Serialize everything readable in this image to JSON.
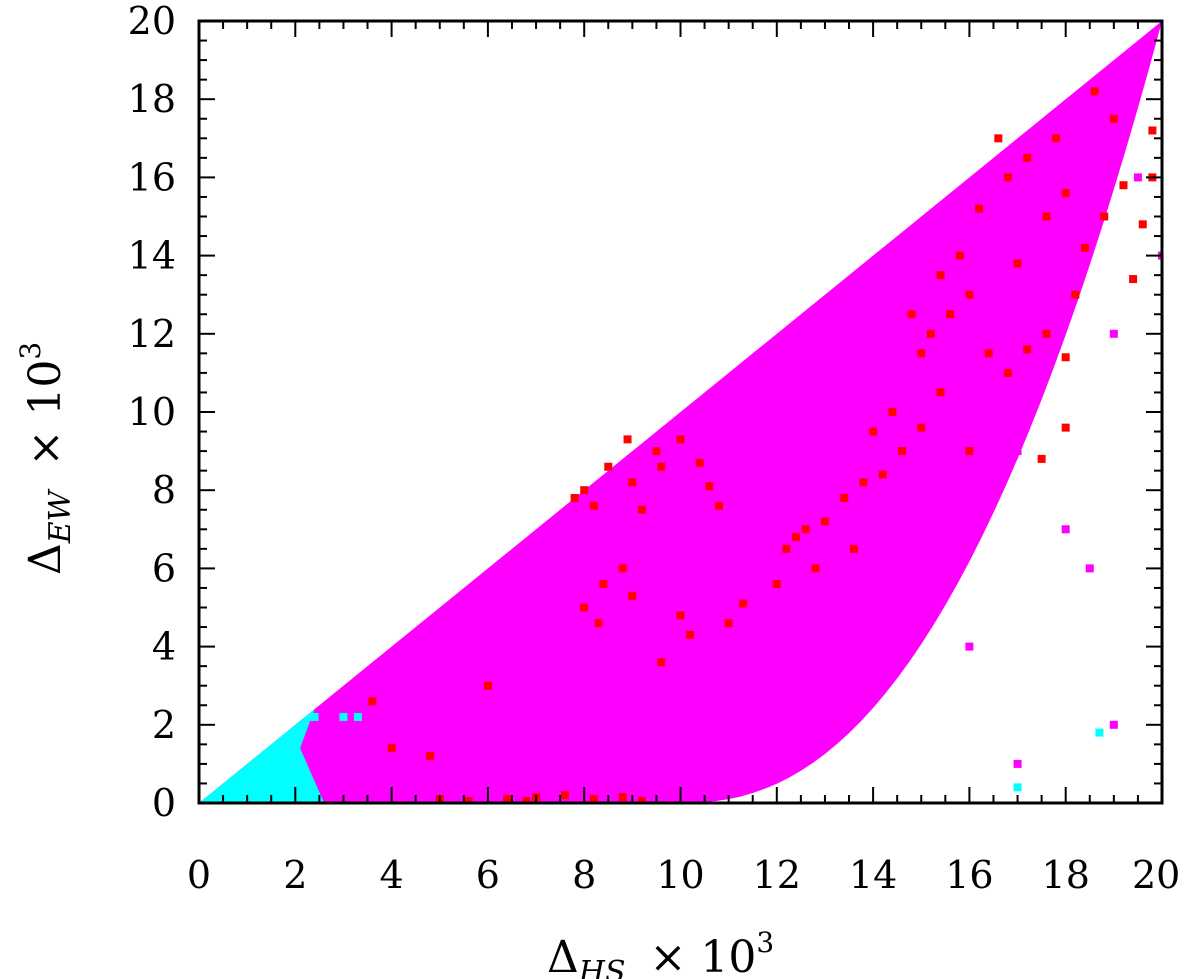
{
  "chart_data": {
    "type": "scatter",
    "title": "",
    "xlabel": {
      "symbol": "Δ",
      "subscript": "HS",
      "suffix": "× 10",
      "exponent": "3"
    },
    "ylabel": {
      "symbol": "Δ",
      "subscript": "EW",
      "suffix": "× 10",
      "exponent": "3"
    },
    "xlim": [
      0,
      20
    ],
    "ylim": [
      0,
      20
    ],
    "xticks": [
      "0",
      "2",
      "4",
      "6",
      "8",
      "10",
      "12",
      "14",
      "16",
      "18",
      "20"
    ],
    "yticks": [
      "0",
      "2",
      "4",
      "6",
      "8",
      "10",
      "12",
      "14",
      "16",
      "18",
      "20"
    ],
    "grid": false,
    "legend": "none",
    "series": [
      {
        "color": "#ff00ff",
        "region": "dense fill of the wedge 0 ≤ y ≤ x, lower boundary ≈ 20·((x−10)/10)^2.3 for x ≥ 10",
        "points": [
          [
            3,
            1
          ],
          [
            5,
            2
          ],
          [
            6,
            3
          ],
          [
            8,
            4
          ],
          [
            10,
            5
          ],
          [
            12,
            3
          ],
          [
            14,
            5
          ],
          [
            15,
            8
          ],
          [
            17,
            9
          ],
          [
            18,
            7
          ],
          [
            19,
            12
          ],
          [
            19.5,
            16
          ],
          [
            16,
            4
          ],
          [
            13,
            2
          ],
          [
            17,
            1
          ],
          [
            19,
            2
          ],
          [
            18.5,
            6
          ],
          [
            20,
            14
          ]
        ]
      },
      {
        "color": "#ff0000",
        "points": [
          [
            8,
            8
          ],
          [
            8.5,
            8.6
          ],
          [
            9,
            8.2
          ],
          [
            9.5,
            9
          ],
          [
            10,
            9.3
          ],
          [
            9.2,
            7.5
          ],
          [
            8.2,
            7.6
          ],
          [
            7.8,
            7.8
          ],
          [
            8.9,
            9.3
          ],
          [
            9.6,
            8.6
          ],
          [
            10.4,
            8.7
          ],
          [
            10.6,
            8.1
          ],
          [
            10.8,
            7.6
          ],
          [
            8.0,
            5.0
          ],
          [
            8.4,
            5.6
          ],
          [
            8.8,
            6.0
          ],
          [
            8.3,
            4.6
          ],
          [
            9.0,
            5.3
          ],
          [
            10.0,
            4.8
          ],
          [
            10.2,
            4.3
          ],
          [
            9.6,
            3.6
          ],
          [
            11.0,
            4.6
          ],
          [
            11.3,
            5.1
          ],
          [
            12.2,
            6.5
          ],
          [
            12.6,
            7.0
          ],
          [
            13.0,
            7.2
          ],
          [
            13.4,
            7.8
          ],
          [
            13.8,
            8.2
          ],
          [
            12.8,
            6.0
          ],
          [
            12.0,
            5.6
          ],
          [
            12.4,
            6.8
          ],
          [
            13.6,
            6.5
          ],
          [
            14.2,
            8.4
          ],
          [
            14.6,
            9.0
          ],
          [
            15.0,
            9.6
          ],
          [
            15.4,
            10.5
          ],
          [
            15.2,
            12.0
          ],
          [
            15.6,
            12.5
          ],
          [
            16.0,
            13.0
          ],
          [
            16.4,
            11.5
          ],
          [
            16.8,
            11.0
          ],
          [
            17.2,
            11.6
          ],
          [
            17.6,
            12.0
          ],
          [
            18.0,
            11.4
          ],
          [
            15.8,
            14.0
          ],
          [
            16.2,
            15.2
          ],
          [
            16.8,
            16.0
          ],
          [
            17.2,
            16.5
          ],
          [
            17.6,
            15.0
          ],
          [
            18.0,
            15.6
          ],
          [
            18.4,
            14.2
          ],
          [
            18.8,
            15.0
          ],
          [
            19.2,
            15.8
          ],
          [
            19.6,
            14.8
          ],
          [
            19.8,
            17.2
          ],
          [
            19.0,
            17.5
          ],
          [
            18.6,
            18.2
          ],
          [
            17.8,
            17.0
          ],
          [
            16.6,
            17.0
          ],
          [
            19.4,
            13.4
          ],
          [
            19.8,
            16.0
          ],
          [
            15.0,
            11.5
          ],
          [
            14.8,
            12.5
          ],
          [
            15.4,
            13.5
          ],
          [
            17.0,
            13.8
          ],
          [
            18.2,
            13.0
          ],
          [
            16.0,
            9.0
          ],
          [
            14.4,
            10.0
          ],
          [
            14.0,
            9.5
          ],
          [
            18.0,
            9.6
          ],
          [
            17.5,
            8.8
          ],
          [
            5.0,
            0.1
          ],
          [
            5.6,
            0.05
          ],
          [
            6.4,
            0.1
          ],
          [
            7.0,
            0.15
          ],
          [
            7.6,
            0.2
          ],
          [
            8.2,
            0.1
          ],
          [
            8.8,
            0.15
          ],
          [
            9.2,
            0.05
          ],
          [
            6.8,
            0.05
          ],
          [
            4.0,
            1.4
          ],
          [
            3.6,
            2.6
          ],
          [
            4.8,
            1.2
          ],
          [
            6.0,
            3.0
          ]
        ]
      },
      {
        "color": "#00ffff",
        "region": "dense fill of the wedge 0 ≤ y ≤ x for x ≤ 2.5",
        "points": [
          [
            0.5,
            0.2
          ],
          [
            1,
            0.5
          ],
          [
            1.5,
            0.8
          ],
          [
            2,
            1
          ],
          [
            2.4,
            2.2
          ],
          [
            3,
            2.2
          ],
          [
            3.3,
            2.2
          ],
          [
            17,
            0.4
          ],
          [
            18.7,
            1.8
          ]
        ]
      }
    ]
  }
}
